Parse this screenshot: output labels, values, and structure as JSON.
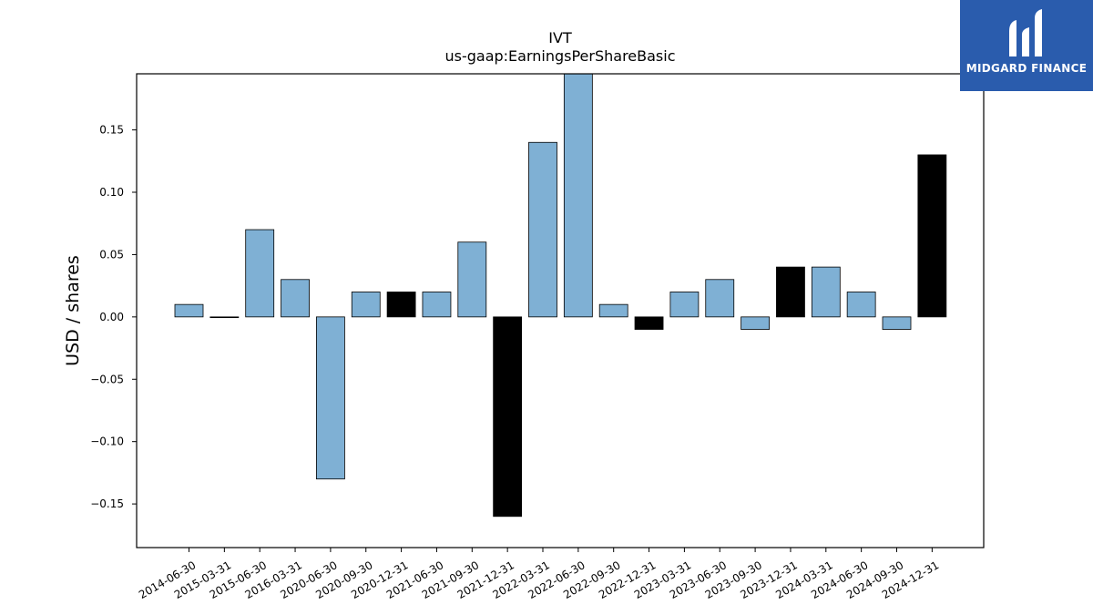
{
  "chart_data": {
    "type": "bar",
    "title": "IVT",
    "subtitle": "us-gaap:EarningsPerShareBasic",
    "xlabel": "",
    "ylabel": "USD / shares",
    "ylim": [
      -0.185,
      0.195
    ],
    "yticks": [
      -0.15,
      -0.1,
      -0.05,
      0.0,
      0.05,
      0.1,
      0.15
    ],
    "ytick_labels": [
      "−0.15",
      "−0.10",
      "−0.05",
      "0.00",
      "0.05",
      "0.10",
      "0.15"
    ],
    "grid": false,
    "categories": [
      "2014-06-30",
      "2015-03-31",
      "2015-06-30",
      "2016-03-31",
      "2020-06-30",
      "2020-09-30",
      "2020-12-31",
      "2021-06-30",
      "2021-09-30",
      "2021-12-31",
      "2022-03-31",
      "2022-06-30",
      "2022-09-30",
      "2022-12-31",
      "2023-03-31",
      "2023-06-30",
      "2023-09-30",
      "2023-12-31",
      "2024-03-31",
      "2024-06-30",
      "2024-09-30",
      "2024-12-31"
    ],
    "values": [
      0.01,
      0.0,
      0.07,
      0.03,
      -0.13,
      0.02,
      0.02,
      0.02,
      0.06,
      -0.16,
      0.14,
      0.2,
      0.01,
      -0.01,
      0.02,
      0.03,
      -0.01,
      0.04,
      0.04,
      0.02,
      -0.01,
      0.13
    ],
    "bar_colors": [
      "#7fb0d4",
      "#7fb0d4",
      "#7fb0d4",
      "#7fb0d4",
      "#7fb0d4",
      "#7fb0d4",
      "#000000",
      "#7fb0d4",
      "#7fb0d4",
      "#000000",
      "#7fb0d4",
      "#7fb0d4",
      "#7fb0d4",
      "#000000",
      "#7fb0d4",
      "#7fb0d4",
      "#7fb0d4",
      "#000000",
      "#7fb0d4",
      "#7fb0d4",
      "#7fb0d4",
      "#000000"
    ]
  },
  "logo": {
    "text": "MIDGARD FINANCE",
    "background": "#2a5cad"
  }
}
